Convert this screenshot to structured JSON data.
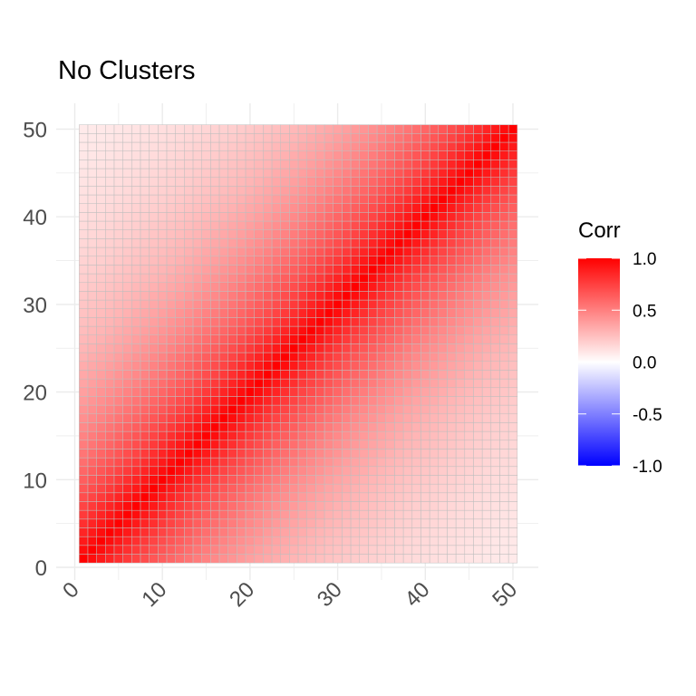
{
  "chart_data": {
    "type": "heatmap",
    "title": "No Clusters",
    "xlabel": "",
    "ylabel": "",
    "x": [
      1,
      50
    ],
    "y": [
      1,
      50
    ],
    "xlim": [
      0,
      50
    ],
    "ylim": [
      0,
      50
    ],
    "xticks": [
      0,
      10,
      20,
      30,
      40,
      50
    ],
    "yticks": [
      0,
      10,
      20,
      30,
      40,
      50
    ],
    "xtick_labels": [
      "0",
      "10",
      "20",
      "30",
      "40",
      "50"
    ],
    "ytick_labels": [
      "0",
      "10",
      "20",
      "30",
      "40",
      "50"
    ],
    "grid": true,
    "cell_border_color": "#BEBEBE",
    "correlation_model": {
      "diagonal": 1.0,
      "decay_per_index_distance": 0.95,
      "description_source": "visual estimate"
    },
    "legend": {
      "title": "Corr",
      "placement": "right",
      "range": [
        -1.0,
        1.0
      ],
      "ticks": [
        1.0,
        0.5,
        0.0,
        -0.5,
        -1.0
      ],
      "tick_labels": [
        "1.0",
        "0.5",
        "0.0",
        "-0.5",
        "-1.0"
      ],
      "colors": {
        "low": "#0000FF",
        "mid": "#FFFFFF",
        "high": "#FF0000"
      }
    }
  }
}
